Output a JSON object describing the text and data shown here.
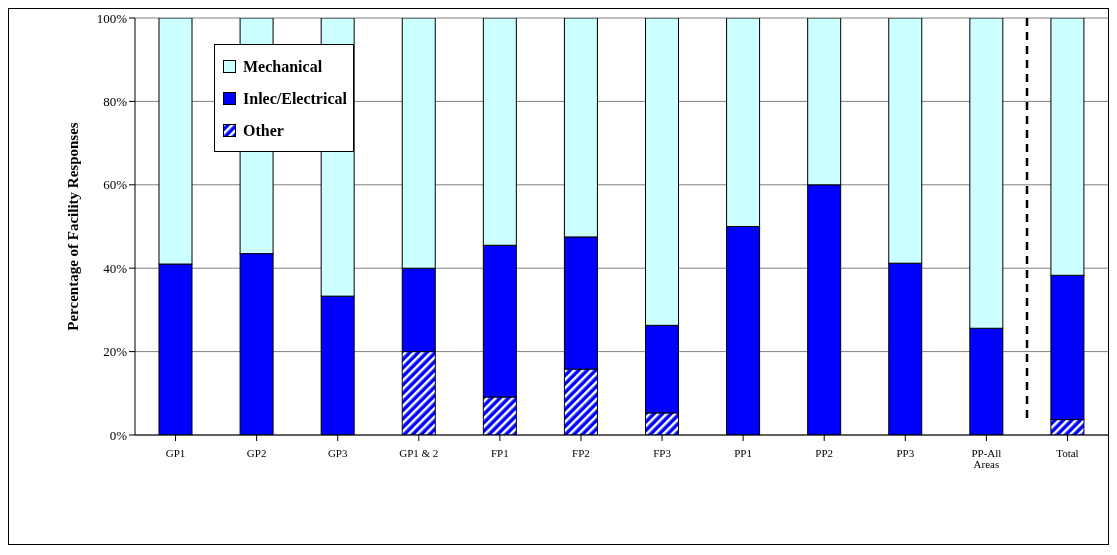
{
  "chart_data": {
    "type": "bar",
    "stacked": true,
    "ylabel": "Percentage of Facility Responses",
    "categories": [
      "GP1",
      "GP2",
      "GP3",
      "GP1 & 2",
      "FP1",
      "FP2",
      "FP3",
      "PP1",
      "PP2",
      "PP3",
      "PP-All Areas",
      "Total"
    ],
    "series": [
      {
        "name": "Other",
        "color": "#0000ff",
        "values": [
          0,
          0,
          0,
          20,
          9.1,
          15.8,
          5.3,
          0,
          0,
          0,
          0,
          3.7
        ]
      },
      {
        "name": "Inlec/Electrical",
        "color": "#0000ff",
        "values": [
          41,
          43.5,
          33.3,
          20,
          36.4,
          31.7,
          21,
          50,
          60,
          41.2,
          25.6,
          34.6
        ]
      },
      {
        "name": "Mechanical",
        "color": "#ccffff",
        "values": [
          59,
          56.5,
          66.7,
          60,
          54.5,
          52.5,
          73.7,
          50,
          40,
          58.8,
          74.4,
          61.7
        ]
      }
    ],
    "ylim": [
      0,
      100
    ],
    "yticks": [
      {
        "value": 0,
        "label": "0%"
      },
      {
        "value": 20,
        "label": "20%"
      },
      {
        "value": 40,
        "label": "40%"
      },
      {
        "value": 60,
        "label": "60%"
      },
      {
        "value": 80,
        "label": "80%"
      },
      {
        "value": 100,
        "label": "100%"
      }
    ],
    "grid": "y",
    "legend": "top left"
  }
}
